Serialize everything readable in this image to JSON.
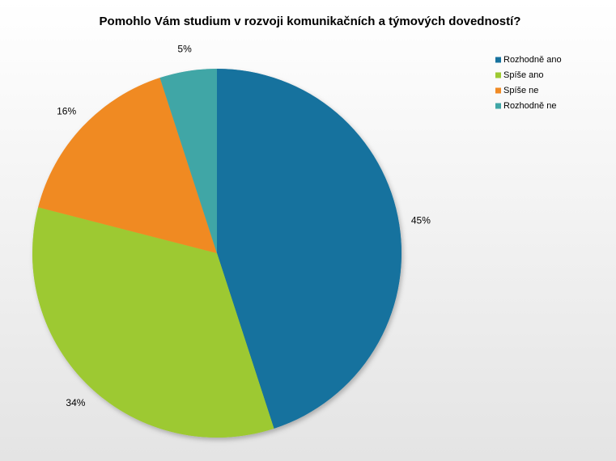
{
  "chart_data": {
    "type": "pie",
    "title": "Pomohlo Vám studium v rozvoji komunikačních a týmových dovedností?",
    "categories": [
      "Rozhodně ano",
      "Spíše ano",
      "Spíše ne",
      "Rozhodně ne"
    ],
    "values": [
      45,
      34,
      16,
      5
    ],
    "value_labels": [
      "45%",
      "34%",
      "16%",
      "5%"
    ],
    "colors": [
      "#17729e",
      "#9dc932",
      "#f08a24",
      "#3fa6a6"
    ],
    "legend": "right"
  }
}
